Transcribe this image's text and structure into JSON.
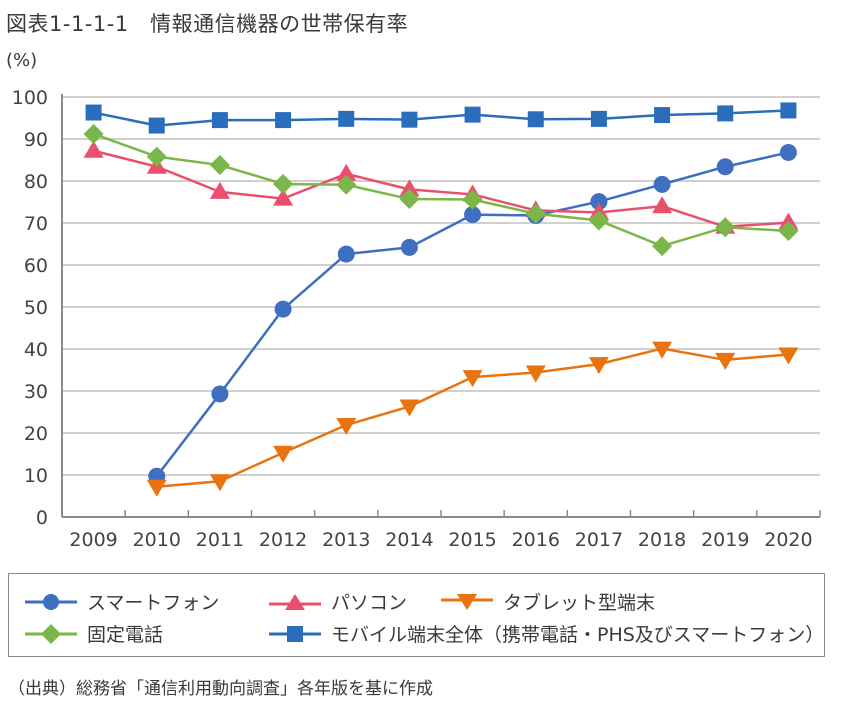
{
  "figure": {
    "title": "図表1-1-1-1　情報通信機器の世帯保有率",
    "unit_label": "(%)",
    "source": "（出典）総務省「通信利用動向調査」各年版を基に作成"
  },
  "chart_data": {
    "type": "line",
    "title": "情報通信機器の世帯保有率",
    "xlabel": "",
    "ylabel": "(%)",
    "x": [
      "2009",
      "2010",
      "2011",
      "2012",
      "2013",
      "2014",
      "2015",
      "2016",
      "2017",
      "2018",
      "2019",
      "2020"
    ],
    "ylim": [
      0,
      100
    ],
    "yticks": [
      0,
      10,
      20,
      30,
      40,
      50,
      60,
      70,
      80,
      90,
      100
    ],
    "grid": true,
    "legend_position": "bottom",
    "series": [
      {
        "name": "スマートフォン",
        "marker": "circle",
        "color": "#3f6fc0",
        "values": [
          null,
          9.7,
          29.3,
          49.5,
          62.6,
          64.2,
          72.0,
          71.8,
          75.1,
          79.2,
          83.4,
          86.8
        ]
      },
      {
        "name": "パソコン",
        "marker": "triangle-up",
        "color": "#e8506e",
        "values": [
          87.2,
          83.4,
          77.4,
          75.8,
          81.7,
          78.0,
          76.8,
          73.0,
          72.5,
          74.0,
          69.1,
          70.1
        ]
      },
      {
        "name": "タブレット型端末",
        "marker": "triangle-down",
        "color": "#e8730f",
        "values": [
          null,
          7.2,
          8.5,
          15.3,
          21.9,
          26.3,
          33.3,
          34.4,
          36.4,
          40.1,
          37.4,
          38.7
        ]
      },
      {
        "name": "固定電話",
        "marker": "diamond",
        "color": "#7ab648",
        "values": [
          91.2,
          85.8,
          83.8,
          79.3,
          79.1,
          75.7,
          75.6,
          72.2,
          70.6,
          64.5,
          69.0,
          68.1
        ]
      },
      {
        "name": "モバイル端末全体（携帯電話・PHS及びスマートフォン）",
        "marker": "square",
        "color": "#2a6ebb",
        "values": [
          96.3,
          93.2,
          94.5,
          94.5,
          94.8,
          94.6,
          95.8,
          94.7,
          94.8,
          95.7,
          96.1,
          96.8
        ]
      }
    ]
  }
}
